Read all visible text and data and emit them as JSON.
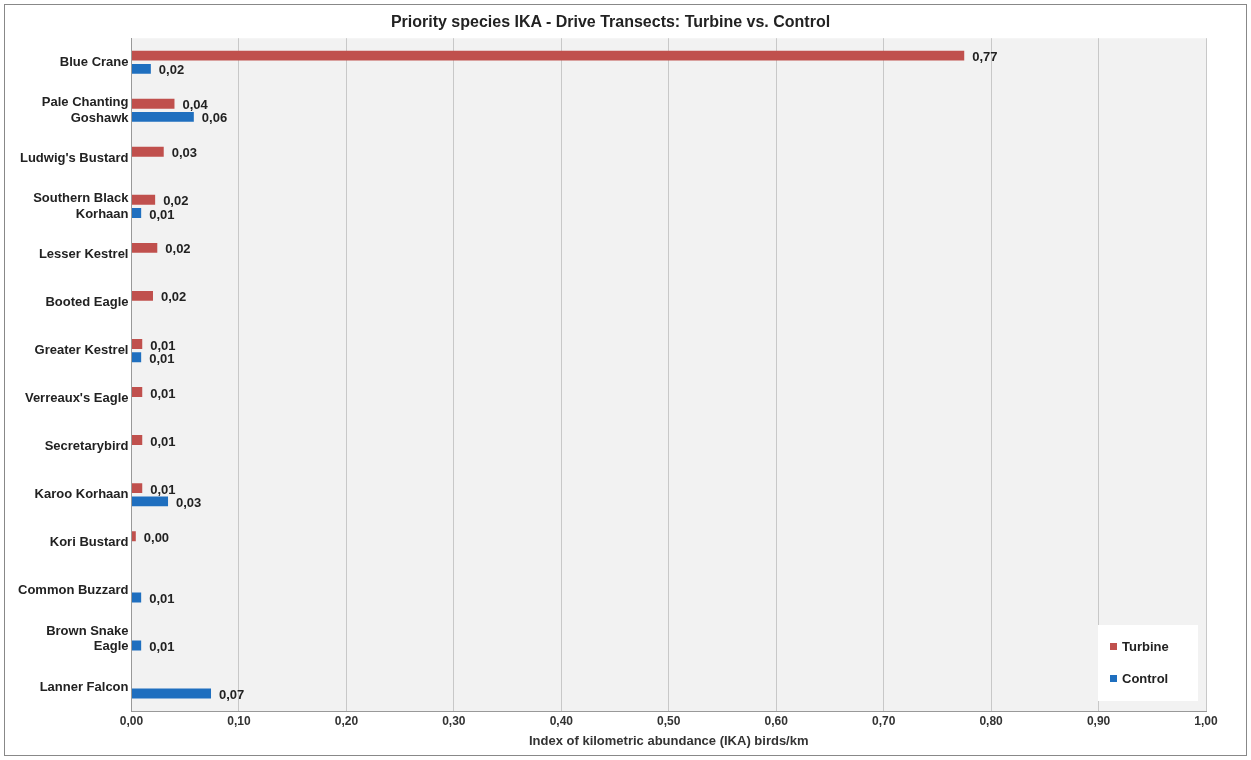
{
  "chart_data": {
    "type": "bar",
    "orientation": "horizontal",
    "title": "Priority species IKA - Drive Transects: Turbine vs. Control",
    "xlabel": "Index of kilometric abundance (IKA) birds/km",
    "categories": [
      "Blue Crane",
      "Pale Chanting Goshawk",
      "Ludwig's Bustard",
      "Southern Black Korhaan",
      "Lesser Kestrel",
      "Booted Eagle",
      "Greater Kestrel",
      "Verreaux's Eagle",
      "Secretarybird",
      "Karoo Korhaan",
      "Kori Bustard",
      "Common Buzzard",
      "Brown Snake Eagle",
      "Lanner Falcon"
    ],
    "series": [
      {
        "name": "Turbine",
        "color": "#c0504d",
        "values": [
          0.775,
          0.04,
          0.03,
          0.022,
          0.024,
          0.02,
          0.01,
          0.01,
          0.01,
          0.01,
          0.004,
          null,
          null,
          null
        ],
        "value_labels": [
          "0,77",
          "0,04",
          "0,03",
          "0,02",
          "0,02",
          "0,02",
          "0,01",
          "0,01",
          "0,01",
          "0,01",
          "0,00",
          null,
          null,
          null
        ]
      },
      {
        "name": "Control",
        "color": "#1f6fbf",
        "values": [
          0.018,
          0.058,
          null,
          0.009,
          null,
          null,
          0.009,
          null,
          null,
          0.034,
          null,
          0.009,
          0.009,
          0.074
        ],
        "value_labels": [
          "0,02",
          "0,06",
          null,
          "0,01",
          null,
          null,
          "0,01",
          null,
          null,
          "0,03",
          null,
          "0,01",
          "0,01",
          "0,07"
        ]
      }
    ],
    "xlim": [
      0,
      1
    ],
    "xticks": [
      {
        "value": 0,
        "label": "0,00"
      },
      {
        "value": 0.1,
        "label": "0,10"
      },
      {
        "value": 0.2,
        "label": "0,20"
      },
      {
        "value": 0.3,
        "label": "0,30"
      },
      {
        "value": 0.4,
        "label": "0,40"
      },
      {
        "value": 0.5,
        "label": "0,50"
      },
      {
        "value": 0.6,
        "label": "0,60"
      },
      {
        "value": 0.7,
        "label": "0,70"
      },
      {
        "value": 0.8,
        "label": "0,80"
      },
      {
        "value": 0.9,
        "label": "0,90"
      },
      {
        "value": 1,
        "label": "1,00"
      }
    ],
    "grid": "x",
    "legend": "bottom right"
  }
}
